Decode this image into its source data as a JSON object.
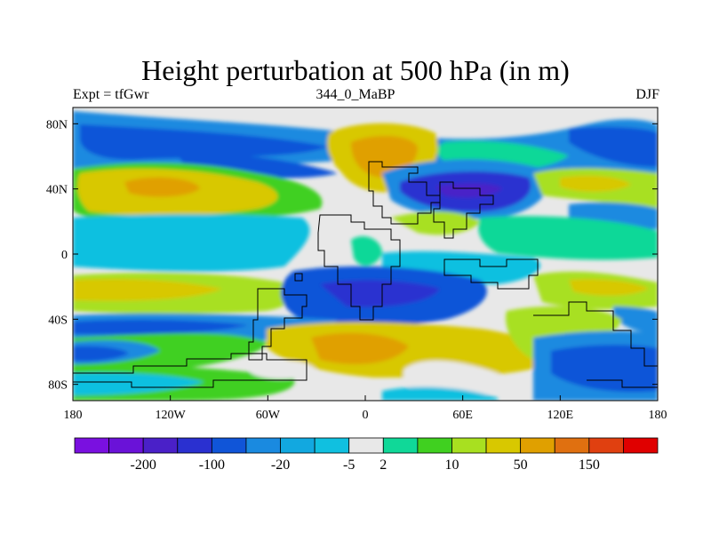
{
  "title": "Height perturbation at 500 hPa (in m)",
  "subtitle": {
    "left": "Expt = tfGwr",
    "center": "344_0_MaBP",
    "right": "DJF"
  },
  "lat_axis": {
    "labels": [
      "80N",
      "40N",
      "0",
      "40S",
      "80S"
    ],
    "values": [
      80,
      40,
      0,
      -40,
      -80
    ],
    "range": [
      -90,
      90
    ]
  },
  "lon_axis": {
    "labels": [
      "180",
      "120W",
      "60W",
      "0",
      "60E",
      "120E",
      "180"
    ],
    "values": [
      -180,
      -120,
      -60,
      0,
      60,
      120,
      180
    ],
    "range": [
      -180,
      180
    ]
  },
  "colorbar": {
    "colors": [
      "#7a10e0",
      "#6a12d8",
      "#4a20c8",
      "#2a30d0",
      "#1055d8",
      "#1a8ae0",
      "#12a8e0",
      "#10c0e0",
      "#e8e8e8",
      "#10d898",
      "#40d020",
      "#a8e020",
      "#d8c800",
      "#e0a000",
      "#e07010",
      "#e04010",
      "#e00000"
    ],
    "labels": [
      "-200",
      "-100",
      "-20",
      "-5",
      "2",
      "10",
      "50",
      "150"
    ],
    "label_after_box": [
      1,
      3,
      5,
      7,
      8,
      10,
      12,
      14
    ]
  },
  "colors": {
    "land_outline": "#000000",
    "neutral": "#e8e8e8",
    "frame": "#000000"
  }
}
